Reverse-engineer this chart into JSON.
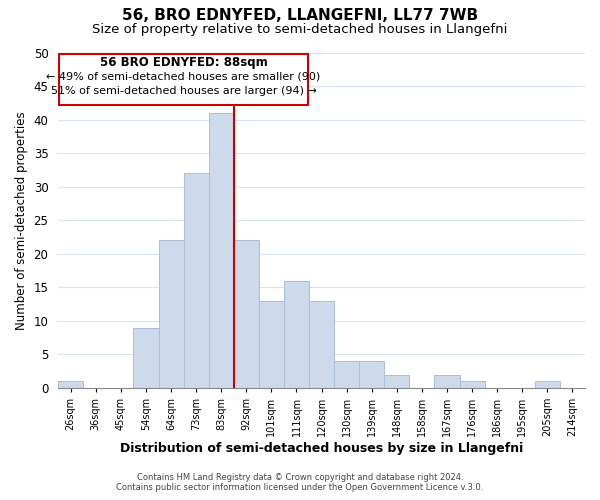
{
  "title": "56, BRO EDNYFED, LLANGEFNI, LL77 7WB",
  "subtitle": "Size of property relative to semi-detached houses in Llangefni",
  "xlabel": "Distribution of semi-detached houses by size in Llangefni",
  "ylabel": "Number of semi-detached properties",
  "bin_labels": [
    "26sqm",
    "36sqm",
    "45sqm",
    "54sqm",
    "64sqm",
    "73sqm",
    "83sqm",
    "92sqm",
    "101sqm",
    "111sqm",
    "120sqm",
    "130sqm",
    "139sqm",
    "148sqm",
    "158sqm",
    "167sqm",
    "176sqm",
    "186sqm",
    "195sqm",
    "205sqm",
    "214sqm"
  ],
  "bin_values": [
    1,
    0,
    0,
    9,
    22,
    32,
    41,
    22,
    13,
    16,
    13,
    4,
    4,
    2,
    0,
    2,
    1,
    0,
    0,
    1,
    0
  ],
  "bar_color": "#cddaeb",
  "bar_edge_color": "#aabfd8",
  "highlight_line_color": "#cc0000",
  "highlight_line_index": 6,
  "ylim": [
    0,
    50
  ],
  "yticks": [
    0,
    5,
    10,
    15,
    20,
    25,
    30,
    35,
    40,
    45,
    50
  ],
  "annotation_title": "56 BRO EDNYFED: 88sqm",
  "annotation_line1": "← 49% of semi-detached houses are smaller (90)",
  "annotation_line2": "51% of semi-detached houses are larger (94) →",
  "annotation_box_facecolor": "#ffffff",
  "annotation_box_edgecolor": "#cc0000",
  "footer_line1": "Contains HM Land Registry data © Crown copyright and database right 2024.",
  "footer_line2": "Contains public sector information licensed under the Open Government Licence v.3.0.",
  "background_color": "#ffffff",
  "grid_color": "#d8e4f0",
  "title_fontsize": 11,
  "subtitle_fontsize": 9.5
}
